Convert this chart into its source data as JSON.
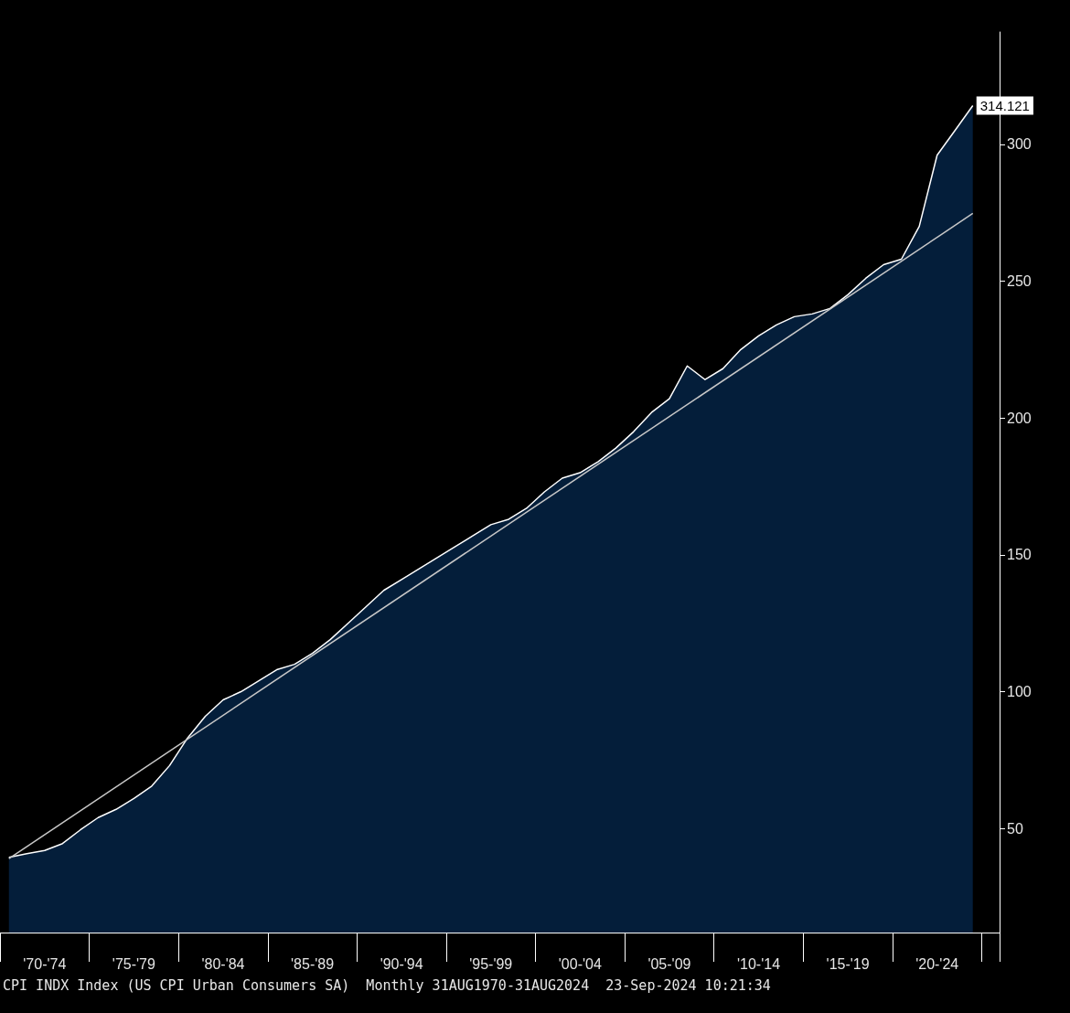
{
  "chart_data": {
    "type": "area",
    "annotations": [
      "CPI INDX Index (US CPI Urban Consumers SA)  Monthly 31AUG1970-31AUG2024  23-Sep-2024 10:21:34"
    ],
    "categories": [
      null,
      null,
      "'70-'74",
      null,
      null,
      null,
      null,
      "'75-'79",
      null,
      null,
      null,
      null,
      "'80-'84",
      null,
      null,
      null,
      null,
      "'85-'89",
      null,
      null,
      null,
      null,
      "'90-'94",
      null,
      null,
      null,
      null,
      "'95-'99",
      null,
      null,
      null,
      null,
      "'00-'04",
      null,
      null,
      null,
      null,
      "'05-'09",
      null,
      null,
      null,
      null,
      "'10-'14",
      null,
      null,
      null,
      null,
      "'15-'19",
      null,
      null,
      null,
      null,
      "'20-'24",
      null,
      null,
      null
    ],
    "ylim": [
      12,
      341
    ],
    "yticks": [
      50,
      100,
      150,
      200,
      250,
      300
    ],
    "marker": "none",
    "series": [
      {
        "color": "#041e3a",
        "values": [
          39.5,
          40.8,
          42,
          44.5,
          49.5,
          54,
          57,
          61,
          65.5,
          73,
          83,
          91,
          97,
          100,
          104,
          108,
          110,
          114,
          119,
          125,
          131,
          137,
          141,
          145,
          149,
          153,
          157,
          161,
          163,
          167,
          173,
          178,
          180,
          184,
          189,
          195,
          202,
          207,
          219,
          214,
          218,
          225,
          230,
          234,
          237,
          238,
          240,
          245,
          251,
          256,
          258,
          270,
          296,
          305,
          314.121,
          null
        ],
        "value_labels": [
          null,
          null,
          null,
          null,
          null,
          null,
          null,
          null,
          null,
          null,
          null,
          null,
          null,
          null,
          null,
          null,
          null,
          null,
          null,
          null,
          null,
          null,
          null,
          null,
          null,
          null,
          null,
          null,
          null,
          null,
          null,
          null,
          null,
          null,
          null,
          null,
          null,
          null,
          null,
          null,
          null,
          null,
          null,
          null,
          null,
          null,
          null,
          null,
          null,
          null,
          null,
          null,
          null,
          null,
          "314.121",
          null
        ]
      },
      {
        "type": "line",
        "color": "#c8c8c8",
        "values": [
          39,
          null,
          null,
          null,
          null,
          null,
          null,
          null,
          null,
          null,
          null,
          null,
          null,
          null,
          null,
          null,
          null,
          null,
          null,
          null,
          null,
          null,
          null,
          null,
          null,
          null,
          null,
          null,
          null,
          null,
          null,
          null,
          null,
          null,
          null,
          null,
          null,
          null,
          null,
          null,
          null,
          null,
          null,
          null,
          null,
          null,
          null,
          null,
          null,
          null,
          null,
          null,
          null,
          null,
          274.7,
          null
        ]
      }
    ]
  }
}
